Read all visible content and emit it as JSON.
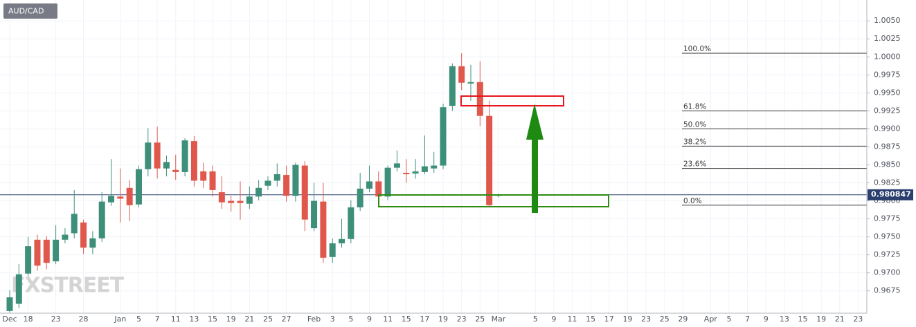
{
  "chart_data": {
    "type": "candlestick",
    "title": "AUD/CAD",
    "watermark": "FXSTREET",
    "up_color": "#3d8f7a",
    "down_color": "#e0584c",
    "grid": true,
    "categories": [
      "Dec",
      null,
      "18",
      null,
      null,
      "23",
      null,
      null,
      "28",
      null,
      null,
      null,
      "Jan",
      null,
      "5",
      null,
      "7",
      null,
      "11",
      null,
      "13",
      null,
      "15",
      null,
      "19",
      null,
      "21",
      null,
      "25",
      null,
      "27",
      null,
      null,
      "Feb",
      null,
      "3",
      null,
      "5",
      null,
      "9",
      null,
      "11",
      null,
      "15",
      null,
      "17",
      null,
      "19",
      null,
      "23",
      null,
      "25",
      null,
      "Mar",
      null,
      null,
      null,
      "5",
      null,
      "9",
      null,
      "11",
      null,
      "15",
      null,
      "17",
      null,
      "19",
      null,
      "23",
      null,
      "25",
      null,
      "29",
      null,
      null,
      "Apr",
      null,
      "5",
      null,
      "7",
      null,
      "9",
      null,
      "13",
      null,
      "15",
      null,
      "19",
      null,
      "21",
      null,
      "23"
    ],
    "open": [
      0.9647,
      0.9657,
      0.9699,
      0.9746,
      0.9746,
      0.9716,
      0.9746,
      0.9755,
      0.977,
      0.9735,
      0.9748,
      0.9798,
      0.9806,
      0.9818,
      0.9795,
      0.9844,
      0.9881,
      0.9845,
      0.9843,
      0.984,
      0.9883,
      0.9841,
      0.9841,
      0.9812,
      0.98,
      0.98,
      0.9796,
      0.9806,
      0.9821,
      0.9828,
      0.9836,
      0.9807,
      0.9849,
      0.9762,
      0.9799,
      0.9722,
      0.9741,
      0.9747,
      0.9791,
      0.9817,
      0.9827,
      0.9806,
      0.9846,
      0.9839,
      0.9838,
      0.984,
      0.9845,
      0.9849,
      0.9932,
      0.9987,
      0.9963,
      0.9965,
      0.9918,
      0.9807,
      null,
      null,
      null,
      null,
      null,
      null,
      null,
      null,
      null,
      null,
      null,
      null,
      null,
      null,
      null,
      null,
      null,
      null,
      null,
      null,
      null,
      null,
      null,
      null,
      null,
      null,
      null,
      null,
      null,
      null,
      null,
      null,
      null,
      null,
      null,
      null,
      null,
      null,
      null
    ],
    "high": [
      0.9676,
      0.9712,
      0.975,
      0.9753,
      0.9751,
      0.9766,
      0.9762,
      0.9815,
      0.9774,
      0.9758,
      0.9812,
      0.9858,
      0.9845,
      0.9829,
      0.9849,
      0.9901,
      0.9903,
      0.9863,
      0.9864,
      0.9887,
      0.989,
      0.9853,
      0.9849,
      0.9834,
      0.9807,
      0.9827,
      0.982,
      0.9829,
      0.9834,
      0.9852,
      0.9849,
      0.9853,
      0.9855,
      0.9825,
      0.9825,
      0.9748,
      0.9775,
      0.9801,
      0.9839,
      0.9849,
      0.9841,
      0.9849,
      0.987,
      0.9858,
      0.9858,
      0.9891,
      0.9868,
      0.9935,
      0.9991,
      1.0005,
      0.9989,
      0.9994,
      0.9939,
      0.981,
      null,
      null,
      null,
      null,
      null,
      null,
      null,
      null,
      null,
      null,
      null,
      null,
      null,
      null,
      null,
      null,
      null,
      null,
      null,
      null,
      null,
      null,
      null,
      null,
      null,
      null,
      null,
      null,
      null,
      null,
      null,
      null,
      null,
      null,
      null,
      null,
      null,
      null,
      null
    ],
    "low": [
      0.9645,
      0.9651,
      0.9695,
      0.9703,
      0.9705,
      0.9712,
      0.9741,
      0.9748,
      0.9726,
      0.9726,
      0.9743,
      0.9793,
      0.977,
      0.9772,
      0.9791,
      0.9834,
      0.9831,
      0.9834,
      0.9829,
      0.9834,
      0.982,
      0.9818,
      0.9806,
      0.9789,
      0.9785,
      0.9774,
      0.9789,
      0.9801,
      0.9815,
      0.982,
      0.9799,
      0.9799,
      0.9758,
      0.9758,
      0.9714,
      0.9714,
      0.9735,
      0.9741,
      0.9786,
      0.9812,
      0.9801,
      0.9801,
      0.9841,
      0.9825,
      0.9831,
      0.9837,
      0.9839,
      0.9844,
      0.9925,
      0.9954,
      0.9939,
      0.9904,
      0.9791,
      0.9805,
      null,
      null,
      null,
      null,
      null,
      null,
      null,
      null,
      null,
      null,
      null,
      null,
      null,
      null,
      null,
      null,
      null,
      null,
      null,
      null,
      null,
      null,
      null,
      null,
      null,
      null,
      null,
      null,
      null,
      null,
      null,
      null,
      null,
      null,
      null,
      null,
      null,
      null,
      null
    ],
    "close": [
      0.9666,
      0.9698,
      0.9737,
      0.971,
      0.9714,
      0.9746,
      0.9753,
      0.9782,
      0.9735,
      0.9748,
      0.9799,
      0.9807,
      0.9803,
      0.9794,
      0.9844,
      0.9881,
      0.9845,
      0.9854,
      0.984,
      0.9884,
      0.9828,
      0.9828,
      0.9815,
      0.9798,
      0.9797,
      0.9797,
      0.9806,
      0.9818,
      0.9828,
      0.9837,
      0.9807,
      0.985,
      0.9774,
      0.98,
      0.9721,
      0.9741,
      0.9747,
      0.9791,
      0.9817,
      0.9827,
      0.9806,
      0.9846,
      0.9852,
      0.9837,
      0.9841,
      0.9848,
      0.9849,
      0.993,
      0.9987,
      0.9964,
      0.9965,
      0.9918,
      0.9794,
      0.98085,
      null,
      null,
      null,
      null,
      null,
      null,
      null,
      null,
      null,
      null,
      null,
      null,
      null,
      null,
      null,
      null,
      null,
      null,
      null,
      null,
      null,
      null,
      null,
      null,
      null,
      null,
      null,
      null,
      null,
      null,
      null,
      null,
      null,
      null,
      null,
      null,
      null,
      null,
      null
    ],
    "ylim": [
      0.9644,
      1.0079
    ],
    "yticks": [
      {
        "value": 1.005,
        "label": "1.0050"
      },
      1.0025,
      {
        "value": 1,
        "label": "1.0000"
      },
      0.9975,
      {
        "value": 0.995,
        "label": "0.9950"
      },
      0.9925,
      {
        "value": 0.99,
        "label": "0.9900"
      },
      0.9875,
      {
        "value": 0.985,
        "label": "0.9850"
      },
      0.9825,
      {
        "value": 0.98,
        "label": "0.9800"
      },
      0.9775,
      {
        "value": 0.975,
        "label": "0.9750"
      },
      0.9725,
      {
        "value": 0.97,
        "label": "0.9700"
      },
      0.9675
    ],
    "last_price": 0.980847,
    "fib_levels": [
      {
        "label": "100.0%",
        "value": 1.0005
      },
      {
        "label": "61.8%",
        "value": 0.9925
      },
      {
        "label": "50.0%",
        "value": 0.99
      },
      {
        "label": "38.2%",
        "value": 0.9876
      },
      {
        "label": "23.6%",
        "value": 0.9845
      },
      {
        "label": "0.0%",
        "value": 0.9794
      }
    ]
  }
}
